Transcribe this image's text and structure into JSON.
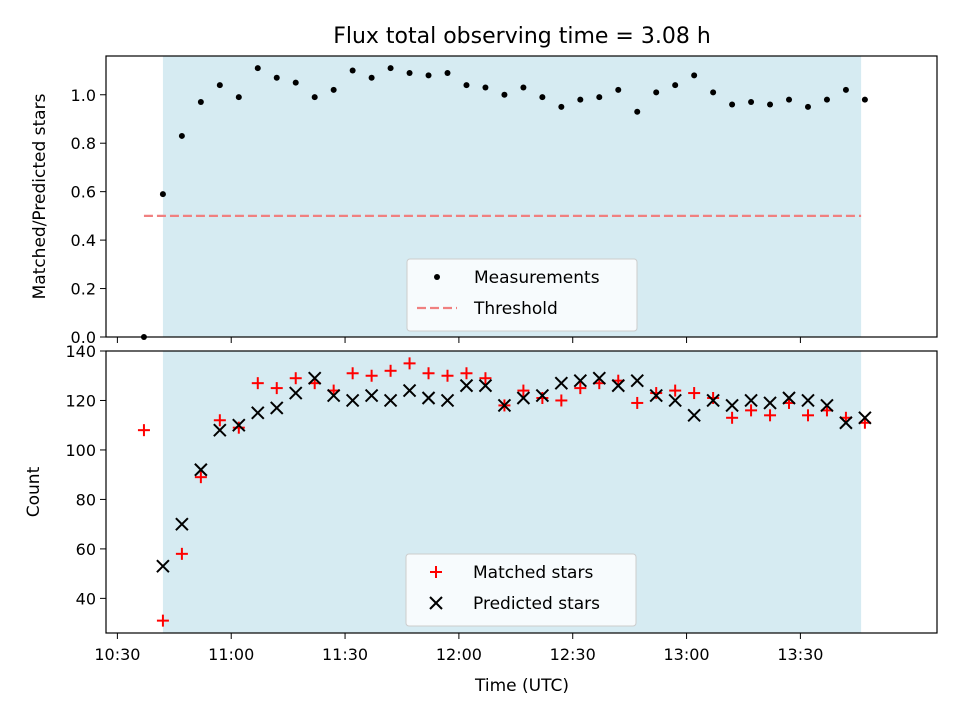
{
  "chart_data": [
    {
      "type": "scatter",
      "title": "Flux total observing time = 3.08 h",
      "ylabel": "Matched/Predicted stars",
      "xlabel": "",
      "xlim": [
        "10:27",
        "14:06"
      ],
      "ylim": [
        0,
        1.16
      ],
      "yticks": [
        "0.0",
        "0.2",
        "0.4",
        "0.6",
        "0.8",
        "1.0"
      ],
      "shaded_span": [
        "10:42",
        "13:46"
      ],
      "shade_color": "#add8e6",
      "legend": {
        "position": "lower-center",
        "entries": [
          "Measurements",
          "Threshold"
        ]
      },
      "threshold": {
        "name": "Threshold",
        "value": 0.5,
        "x_range": [
          "10:37",
          "13:46"
        ],
        "color": "#f08080"
      },
      "series": [
        {
          "name": "Measurements",
          "color": "#000000",
          "marker": "dot",
          "x": [
            "10:37",
            "10:42",
            "10:47",
            "10:52",
            "10:57",
            "11:02",
            "11:07",
            "11:12",
            "11:17",
            "11:22",
            "11:27",
            "11:32",
            "11:37",
            "11:42",
            "11:47",
            "11:52",
            "11:57",
            "12:02",
            "12:07",
            "12:12",
            "12:17",
            "12:22",
            "12:27",
            "12:32",
            "12:37",
            "12:42",
            "12:47",
            "12:52",
            "12:57",
            "13:02",
            "13:07",
            "13:12",
            "13:17",
            "13:22",
            "13:27",
            "13:32",
            "13:37",
            "13:42",
            "13:47"
          ],
          "y": [
            0.0,
            0.59,
            0.83,
            0.97,
            1.04,
            0.99,
            1.11,
            1.07,
            1.05,
            0.99,
            1.02,
            1.1,
            1.07,
            1.11,
            1.09,
            1.08,
            1.09,
            1.04,
            1.03,
            1.0,
            1.03,
            0.99,
            0.95,
            0.98,
            0.99,
            1.02,
            0.93,
            1.01,
            1.04,
            1.08,
            1.01,
            0.96,
            0.97,
            0.96,
            0.98,
            0.95,
            0.98,
            1.02,
            0.98
          ]
        }
      ]
    },
    {
      "type": "scatter",
      "title": "",
      "ylabel": "Count",
      "xlabel": "Time (UTC)",
      "xlim": [
        "10:27",
        "14:06"
      ],
      "ylim": [
        26,
        140
      ],
      "yticks": [
        "40",
        "60",
        "80",
        "100",
        "120",
        "140"
      ],
      "xticks": [
        "10:30",
        "11:00",
        "11:30",
        "12:00",
        "12:30",
        "13:00",
        "13:30"
      ],
      "shaded_span": [
        "10:42",
        "13:46"
      ],
      "shade_color": "#add8e6",
      "legend": {
        "position": "lower-center",
        "entries": [
          "Matched stars",
          "Predicted stars"
        ]
      },
      "series": [
        {
          "name": "Matched stars",
          "color": "#ff0000",
          "marker": "plus",
          "x": [
            "10:37",
            "10:42",
            "10:47",
            "10:52",
            "10:57",
            "11:02",
            "11:07",
            "11:12",
            "11:17",
            "11:22",
            "11:27",
            "11:32",
            "11:37",
            "11:42",
            "11:47",
            "11:52",
            "11:57",
            "12:02",
            "12:07",
            "12:12",
            "12:17",
            "12:22",
            "12:27",
            "12:32",
            "12:37",
            "12:42",
            "12:47",
            "12:52",
            "12:57",
            "13:02",
            "13:07",
            "13:12",
            "13:17",
            "13:22",
            "13:27",
            "13:32",
            "13:37",
            "13:42",
            "13:47"
          ],
          "y": [
            108,
            31,
            58,
            89,
            112,
            109,
            127,
            125,
            129,
            127,
            124,
            131,
            130,
            132,
            135,
            131,
            130,
            131,
            129,
            118,
            124,
            121,
            120,
            125,
            127,
            128,
            119,
            123,
            124,
            123,
            121,
            113,
            116,
            114,
            119,
            114,
            116,
            113,
            111
          ]
        },
        {
          "name": "Predicted stars",
          "color": "#000000",
          "marker": "x",
          "x": [
            "10:42",
            "10:47",
            "10:52",
            "10:57",
            "11:02",
            "11:07",
            "11:12",
            "11:17",
            "11:22",
            "11:27",
            "11:32",
            "11:37",
            "11:42",
            "11:47",
            "11:52",
            "11:57",
            "12:02",
            "12:07",
            "12:12",
            "12:17",
            "12:22",
            "12:27",
            "12:32",
            "12:37",
            "12:42",
            "12:47",
            "12:52",
            "12:57",
            "13:02",
            "13:07",
            "13:12",
            "13:17",
            "13:22",
            "13:27",
            "13:32",
            "13:37",
            "13:42",
            "13:47"
          ],
          "y": [
            53,
            70,
            92,
            108,
            110,
            115,
            117,
            123,
            129,
            122,
            120,
            122,
            120,
            124,
            121,
            120,
            126,
            126,
            118,
            121,
            122,
            127,
            128,
            129,
            126,
            128,
            122,
            120,
            114,
            120,
            118,
            120,
            119,
            121,
            120,
            118,
            111,
            113
          ]
        }
      ]
    }
  ]
}
